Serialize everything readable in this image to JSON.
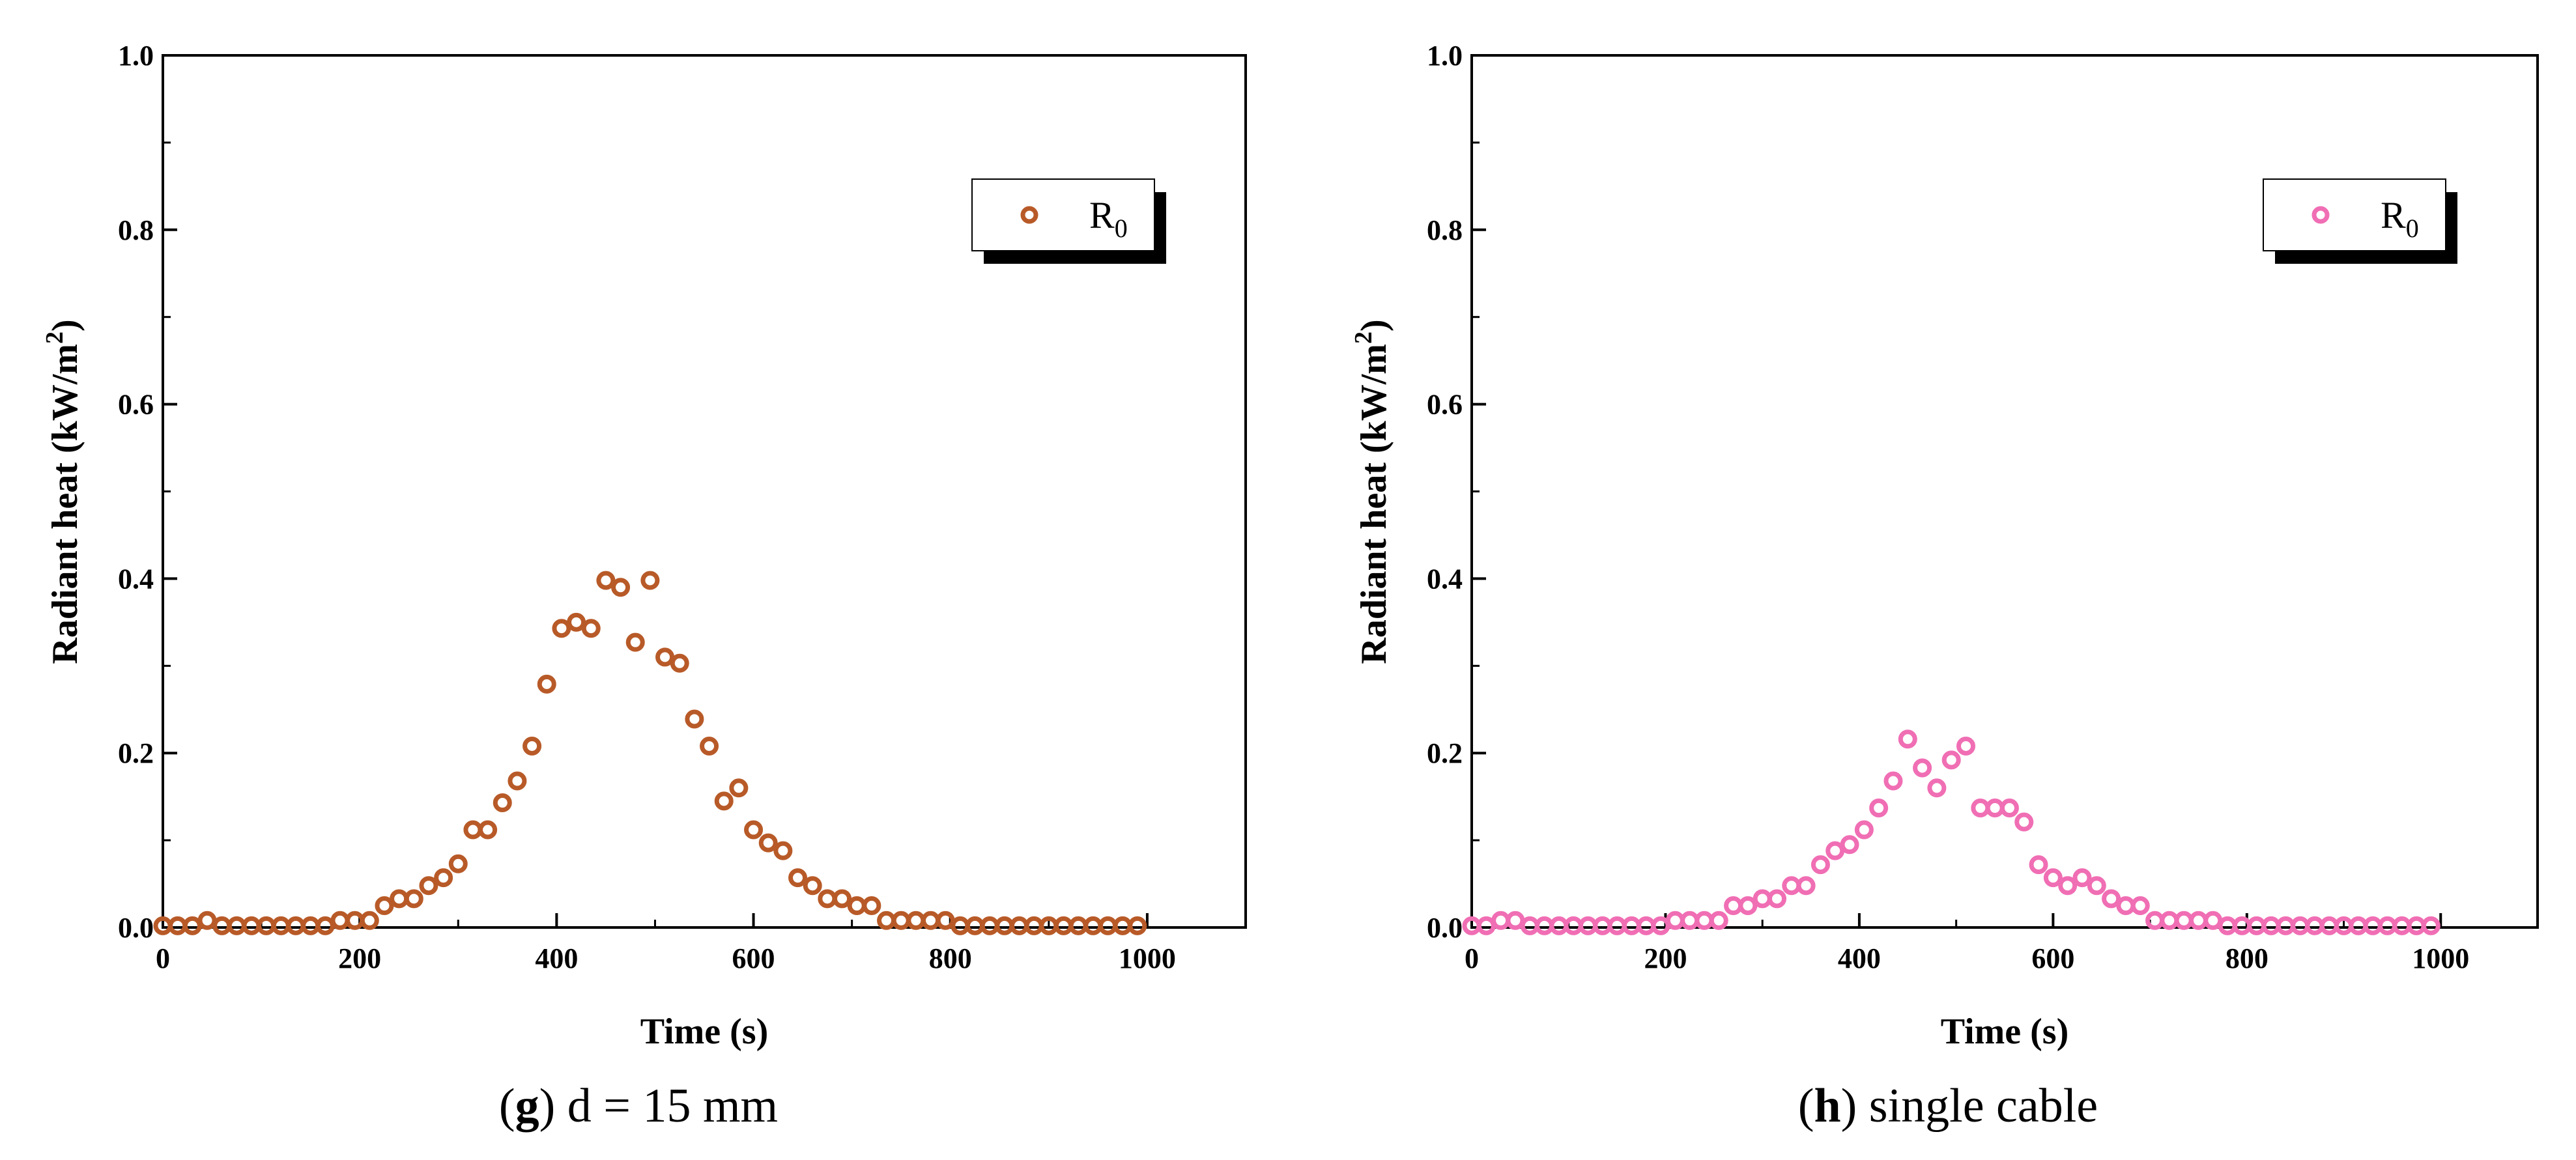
{
  "chart_data": [
    {
      "type": "scatter",
      "title": "",
      "xlabel": "Time (s)",
      "ylabel_prefix": "Radiant heat (kW/m",
      "ylabel_sup": "2",
      "ylabel_suffix": ")",
      "xlim": [
        0,
        1100
      ],
      "ylim": [
        0,
        1.0
      ],
      "xticks": [
        0,
        200,
        400,
        600,
        800,
        1000
      ],
      "xtick_labels": [
        "0",
        "200",
        "400",
        "600",
        "800",
        "1000"
      ],
      "yticks": [
        0,
        0.2,
        0.4,
        0.6,
        0.8,
        1.0
      ],
      "ytick_labels": [
        "0.0",
        "0.2",
        "0.4",
        "0.6",
        "0.8",
        "1.0"
      ],
      "legend_position": "top-right",
      "caption_letter": "g",
      "caption_text": " d = 15 mm",
      "series": [
        {
          "name_main": "R",
          "name_sub": "0",
          "color": "#b85a28",
          "x": [
            0,
            15,
            30,
            45,
            60,
            75,
            90,
            105,
            120,
            135,
            150,
            165,
            180,
            195,
            210,
            225,
            240,
            255,
            270,
            285,
            300,
            315,
            330,
            345,
            360,
            375,
            390,
            405,
            420,
            435,
            450,
            465,
            480,
            495,
            510,
            525,
            540,
            555,
            570,
            585,
            600,
            615,
            630,
            645,
            660,
            675,
            690,
            705,
            720,
            735,
            750,
            765,
            780,
            795,
            810,
            825,
            840,
            855,
            870,
            885,
            900,
            915,
            930,
            945,
            960,
            975,
            990
          ],
          "y": [
            0.002,
            0.002,
            0.002,
            0.008,
            0.002,
            0.002,
            0.002,
            0.002,
            0.002,
            0.002,
            0.002,
            0.002,
            0.008,
            0.008,
            0.008,
            0.025,
            0.033,
            0.033,
            0.048,
            0.057,
            0.073,
            0.112,
            0.112,
            0.143,
            0.168,
            0.208,
            0.279,
            0.343,
            0.35,
            0.343,
            0.398,
            0.39,
            0.327,
            0.398,
            0.31,
            0.303,
            0.239,
            0.208,
            0.145,
            0.16,
            0.112,
            0.097,
            0.088,
            0.057,
            0.048,
            0.033,
            0.033,
            0.025,
            0.025,
            0.008,
            0.008,
            0.008,
            0.008,
            0.008,
            0.002,
            0.002,
            0.002,
            0.002,
            0.002,
            0.002,
            0.002,
            0.002,
            0.002,
            0.002,
            0.002,
            0.002,
            0.002
          ]
        }
      ]
    },
    {
      "type": "scatter",
      "title": "",
      "xlabel": "Time (s)",
      "ylabel_prefix": "Radiant heat (kW/m",
      "ylabel_sup": "2",
      "ylabel_suffix": ")",
      "xlim": [
        0,
        1100
      ],
      "ylim": [
        0,
        1.0
      ],
      "xticks": [
        0,
        200,
        400,
        600,
        800,
        1000
      ],
      "xtick_labels": [
        "0",
        "200",
        "400",
        "600",
        "800",
        "1000"
      ],
      "yticks": [
        0,
        0.2,
        0.4,
        0.6,
        0.8,
        1.0
      ],
      "ytick_labels": [
        "0.0",
        "0.2",
        "0.4",
        "0.6",
        "0.8",
        "1.0"
      ],
      "legend_position": "top-right",
      "caption_letter": "h",
      "caption_text": " single cable",
      "series": [
        {
          "name_main": "R",
          "name_sub": "0",
          "color": "#f06eb4",
          "x": [
            0,
            15,
            30,
            45,
            60,
            75,
            90,
            105,
            120,
            135,
            150,
            165,
            180,
            195,
            210,
            225,
            240,
            255,
            270,
            285,
            300,
            315,
            330,
            345,
            360,
            375,
            390,
            405,
            420,
            435,
            450,
            465,
            480,
            495,
            510,
            525,
            540,
            555,
            570,
            585,
            600,
            615,
            630,
            645,
            660,
            675,
            690,
            705,
            720,
            735,
            750,
            765,
            780,
            795,
            810,
            825,
            840,
            855,
            870,
            885,
            900,
            915,
            930,
            945,
            960,
            975,
            990
          ],
          "y": [
            0.002,
            0.002,
            0.008,
            0.008,
            0.002,
            0.002,
            0.002,
            0.002,
            0.002,
            0.002,
            0.002,
            0.002,
            0.002,
            0.002,
            0.008,
            0.008,
            0.008,
            0.008,
            0.025,
            0.025,
            0.033,
            0.033,
            0.048,
            0.048,
            0.072,
            0.088,
            0.095,
            0.112,
            0.137,
            0.168,
            0.216,
            0.183,
            0.16,
            0.192,
            0.208,
            0.137,
            0.137,
            0.137,
            0.121,
            0.072,
            0.057,
            0.048,
            0.057,
            0.048,
            0.033,
            0.025,
            0.025,
            0.008,
            0.008,
            0.008,
            0.008,
            0.008,
            0.002,
            0.002,
            0.002,
            0.002,
            0.002,
            0.002,
            0.002,
            0.002,
            0.002,
            0.002,
            0.002,
            0.002,
            0.002,
            0.002,
            0.002
          ]
        }
      ]
    }
  ]
}
